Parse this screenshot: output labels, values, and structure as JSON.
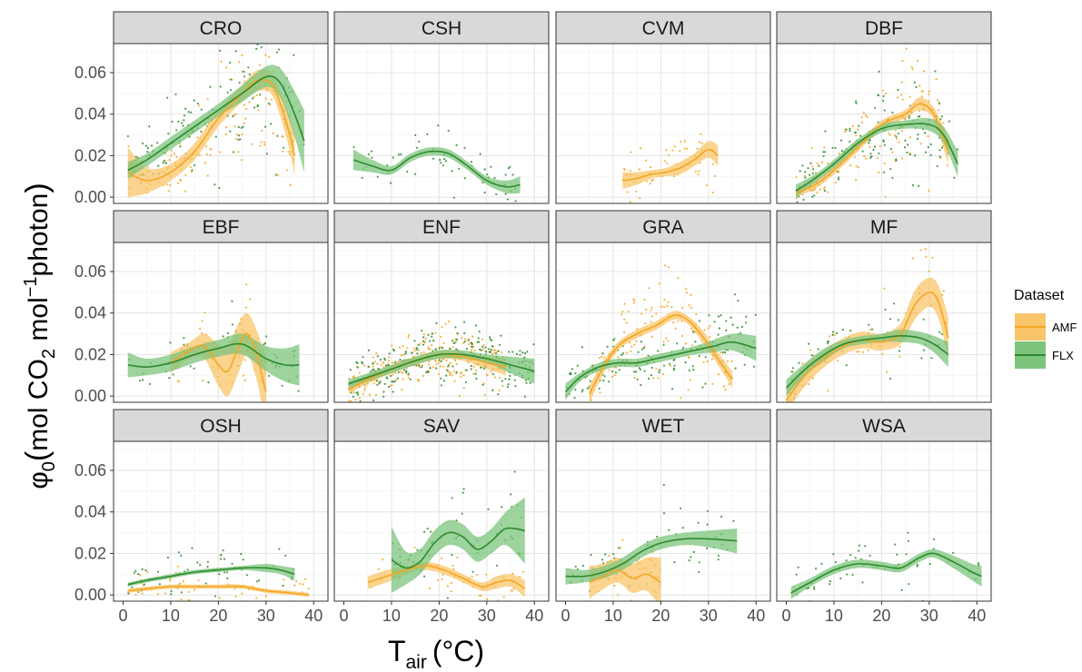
{
  "chart_data": {
    "type": "line",
    "facet_layout": "3x4",
    "xlabel": "T",
    "xlabel_sub": "air",
    "xlabel_unit": "(°C)",
    "ylabel_parts": {
      "sym": "φ",
      "sub0": "0",
      "open": "(",
      "mol1": "mol CO",
      "sub2": "2",
      "mol2": "  mol",
      "sup": "−1",
      "tail": "photon",
      "close": ")"
    },
    "xlim": [
      -2,
      43
    ],
    "ylim": [
      -0.003,
      0.074
    ],
    "x_ticks": [
      0,
      10,
      20,
      30,
      40
    ],
    "x_tick_labels": [
      "0",
      "10",
      "20",
      "30",
      "40"
    ],
    "y_ticks": [
      0.0,
      0.02,
      0.04,
      0.06
    ],
    "y_tick_labels": [
      "0.00",
      "0.02",
      "0.04",
      "0.06"
    ],
    "grid": true,
    "legend": {
      "title": "Dataset",
      "placement": "right",
      "entries": [
        {
          "name": "AMF",
          "color": "#F5A623",
          "fill": "#F9C56A"
        },
        {
          "name": "FLX",
          "color": "#2E8B2E",
          "fill": "#7CC47C"
        }
      ]
    },
    "panels": [
      {
        "name": "CRO",
        "series": [
          {
            "name": "AMF",
            "x": [
              1,
              5,
              10,
              15,
              20,
              25,
              28,
              31,
              33,
              35,
              36
            ],
            "y": [
              0.012,
              0.008,
              0.012,
              0.022,
              0.038,
              0.05,
              0.056,
              0.055,
              0.045,
              0.03,
              0.02
            ],
            "band": [
              0.012,
              0.006,
              0.004,
              0.004,
              0.004,
              0.004,
              0.005,
              0.005,
              0.006,
              0.008,
              0.01
            ]
          },
          {
            "name": "FLX",
            "x": [
              1,
              5,
              10,
              15,
              20,
              25,
              30,
              33,
              36,
              38
            ],
            "y": [
              0.013,
              0.018,
              0.026,
              0.034,
              0.042,
              0.05,
              0.058,
              0.055,
              0.04,
              0.027
            ],
            "band": [
              0.004,
              0.003,
              0.003,
              0.003,
              0.003,
              0.004,
              0.005,
              0.007,
              0.011,
              0.015
            ]
          }
        ]
      },
      {
        "name": "CSH",
        "series": [
          {
            "name": "FLX",
            "x": [
              2,
              6,
              10,
              14,
              18,
              22,
              26,
              30,
              34,
              37
            ],
            "y": [
              0.018,
              0.015,
              0.013,
              0.019,
              0.022,
              0.021,
              0.015,
              0.008,
              0.005,
              0.006
            ],
            "band": [
              0.005,
              0.003,
              0.002,
              0.002,
              0.002,
              0.002,
              0.002,
              0.002,
              0.003,
              0.004
            ]
          }
        ]
      },
      {
        "name": "CVM",
        "series": [
          {
            "name": "AMF",
            "x": [
              12,
              15,
              18,
              21,
              24,
              27,
              30,
              32
            ],
            "y": [
              0.008,
              0.009,
              0.011,
              0.012,
              0.014,
              0.018,
              0.023,
              0.02
            ],
            "band": [
              0.004,
              0.003,
              0.002,
              0.002,
              0.003,
              0.003,
              0.004,
              0.005
            ]
          }
        ]
      },
      {
        "name": "DBF",
        "series": [
          {
            "name": "AMF",
            "x": [
              2,
              6,
              10,
              15,
              20,
              25,
              28,
              31,
              34
            ],
            "y": [
              0.002,
              0.006,
              0.013,
              0.024,
              0.035,
              0.04,
              0.045,
              0.04,
              0.022
            ],
            "band": [
              0.002,
              0.002,
              0.002,
              0.002,
              0.002,
              0.002,
              0.003,
              0.003,
              0.006
            ]
          },
          {
            "name": "FLX",
            "x": [
              2,
              6,
              10,
              15,
              20,
              25,
              30,
              33,
              36
            ],
            "y": [
              0.003,
              0.009,
              0.016,
              0.026,
              0.033,
              0.035,
              0.035,
              0.03,
              0.016
            ],
            "band": [
              0.003,
              0.002,
              0.002,
              0.002,
              0.002,
              0.002,
              0.003,
              0.004,
              0.006
            ]
          }
        ]
      },
      {
        "name": "EBF",
        "series": [
          {
            "name": "AMF",
            "x": [
              10,
              14,
              17,
              20,
              22,
              24,
              26,
              28,
              30
            ],
            "y": [
              0.016,
              0.022,
              0.024,
              0.015,
              0.012,
              0.022,
              0.03,
              0.02,
              0.002
            ],
            "band": [
              0.005,
              0.004,
              0.006,
              0.01,
              0.012,
              0.012,
              0.01,
              0.012,
              0.016
            ]
          },
          {
            "name": "FLX",
            "x": [
              1,
              5,
              10,
              15,
              20,
              25,
              30,
              34,
              37
            ],
            "y": [
              0.015,
              0.014,
              0.016,
              0.02,
              0.023,
              0.025,
              0.018,
              0.015,
              0.015
            ],
            "band": [
              0.006,
              0.004,
              0.004,
              0.004,
              0.004,
              0.005,
              0.006,
              0.008,
              0.01
            ]
          }
        ]
      },
      {
        "name": "ENF",
        "series": [
          {
            "name": "AMF",
            "x": [
              1,
              5,
              10,
              15,
              20,
              25,
              30,
              34
            ],
            "y": [
              0.003,
              0.008,
              0.013,
              0.017,
              0.02,
              0.019,
              0.016,
              0.014
            ],
            "band": [
              0.002,
              0.002,
              0.002,
              0.002,
              0.002,
              0.002,
              0.003,
              0.004
            ]
          },
          {
            "name": "FLX",
            "x": [
              1,
              5,
              10,
              15,
              20,
              25,
              30,
              35,
              40
            ],
            "y": [
              0.006,
              0.009,
              0.013,
              0.017,
              0.02,
              0.02,
              0.018,
              0.015,
              0.012
            ],
            "band": [
              0.002,
              0.002,
              0.002,
              0.002,
              0.002,
              0.002,
              0.002,
              0.004,
              0.006
            ]
          }
        ]
      },
      {
        "name": "GRA",
        "series": [
          {
            "name": "AMF",
            "x": [
              5,
              8,
              11,
              15,
              19,
              23,
              26,
              29,
              32,
              35
            ],
            "y": [
              0.001,
              0.014,
              0.024,
              0.03,
              0.034,
              0.039,
              0.036,
              0.028,
              0.018,
              0.008
            ],
            "band": [
              0.004,
              0.003,
              0.002,
              0.002,
              0.002,
              0.002,
              0.002,
              0.003,
              0.003,
              0.004
            ]
          },
          {
            "name": "FLX",
            "x": [
              0,
              3,
              7,
              11,
              15,
              19,
              23,
              27,
              31,
              35,
              40
            ],
            "y": [
              0.002,
              0.009,
              0.014,
              0.016,
              0.016,
              0.018,
              0.02,
              0.022,
              0.024,
              0.026,
              0.023
            ],
            "band": [
              0.004,
              0.002,
              0.002,
              0.002,
              0.002,
              0.002,
              0.002,
              0.002,
              0.003,
              0.004,
              0.006
            ]
          }
        ]
      },
      {
        "name": "MF",
        "series": [
          {
            "name": "AMF",
            "x": [
              0,
              4,
              8,
              12,
              16,
              20,
              24,
              27,
              30,
              32,
              34
            ],
            "y": [
              -0.002,
              0.01,
              0.018,
              0.024,
              0.027,
              0.026,
              0.03,
              0.044,
              0.05,
              0.045,
              0.028
            ],
            "band": [
              0.006,
              0.005,
              0.004,
              0.004,
              0.004,
              0.004,
              0.005,
              0.007,
              0.007,
              0.008,
              0.01
            ]
          },
          {
            "name": "FLX",
            "x": [
              0,
              4,
              8,
              12,
              16,
              20,
              24,
              28,
              31,
              34
            ],
            "y": [
              0.004,
              0.013,
              0.02,
              0.025,
              0.027,
              0.028,
              0.029,
              0.028,
              0.025,
              0.02
            ],
            "band": [
              0.004,
              0.003,
              0.003,
              0.002,
              0.002,
              0.002,
              0.003,
              0.003,
              0.004,
              0.006
            ]
          }
        ]
      },
      {
        "name": "OSH",
        "series": [
          {
            "name": "AMF",
            "x": [
              1,
              5,
              10,
              15,
              20,
              25,
              30,
              35,
              39
            ],
            "y": [
              0.002,
              0.003,
              0.004,
              0.004,
              0.004,
              0.004,
              0.002,
              0.001,
              0.0
            ],
            "band": [
              0.001,
              0.001,
              0.001,
              0.001,
              0.001,
              0.001,
              0.001,
              0.001,
              0.001
            ]
          },
          {
            "name": "FLX",
            "x": [
              1,
              5,
              10,
              15,
              20,
              25,
              30,
              33,
              36
            ],
            "y": [
              0.005,
              0.007,
              0.009,
              0.011,
              0.012,
              0.013,
              0.013,
              0.012,
              0.01
            ],
            "band": [
              0.001,
              0.001,
              0.001,
              0.001,
              0.001,
              0.001,
              0.002,
              0.002,
              0.003
            ]
          }
        ]
      },
      {
        "name": "SAV",
        "series": [
          {
            "name": "AMF",
            "x": [
              5,
              9,
              13,
              17,
              21,
              25,
              29,
              32,
              35,
              38
            ],
            "y": [
              0.006,
              0.009,
              0.012,
              0.014,
              0.012,
              0.008,
              0.004,
              0.006,
              0.007,
              0.003
            ],
            "band": [
              0.003,
              0.003,
              0.002,
              0.002,
              0.002,
              0.002,
              0.002,
              0.003,
              0.003,
              0.004
            ]
          },
          {
            "name": "FLX",
            "x": [
              10,
              13,
              16,
              19,
              22,
              25,
              28,
              31,
              34,
              38
            ],
            "y": [
              0.017,
              0.013,
              0.016,
              0.025,
              0.03,
              0.028,
              0.022,
              0.026,
              0.032,
              0.031
            ],
            "band": [
              0.016,
              0.008,
              0.006,
              0.006,
              0.006,
              0.006,
              0.006,
              0.006,
              0.008,
              0.016
            ]
          }
        ]
      },
      {
        "name": "WET",
        "series": [
          {
            "name": "AMF",
            "x": [
              5,
              8,
              11,
              14,
              17,
              20
            ],
            "y": [
              0.006,
              0.009,
              0.012,
              0.008,
              0.01,
              0.006
            ],
            "band": [
              0.008,
              0.006,
              0.006,
              0.007,
              0.008,
              0.012
            ]
          },
          {
            "name": "FLX",
            "x": [
              0,
              4,
              8,
              12,
              16,
              20,
              25,
              30,
              36
            ],
            "y": [
              0.009,
              0.009,
              0.011,
              0.015,
              0.021,
              0.025,
              0.027,
              0.027,
              0.026
            ],
            "band": [
              0.004,
              0.003,
              0.003,
              0.003,
              0.003,
              0.003,
              0.003,
              0.004,
              0.006
            ]
          }
        ]
      },
      {
        "name": "WSA",
        "series": [
          {
            "name": "FLX",
            "x": [
              1,
              5,
              10,
              15,
              20,
              24,
              28,
              31,
              35,
              39,
              41
            ],
            "y": [
              0.001,
              0.006,
              0.012,
              0.015,
              0.014,
              0.013,
              0.018,
              0.02,
              0.016,
              0.011,
              0.009
            ],
            "band": [
              0.003,
              0.002,
              0.002,
              0.002,
              0.002,
              0.002,
              0.002,
              0.002,
              0.003,
              0.004,
              0.005
            ]
          }
        ]
      }
    ]
  }
}
